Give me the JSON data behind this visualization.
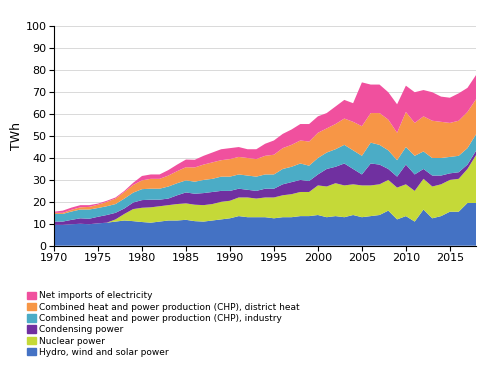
{
  "years": [
    1970,
    1971,
    1972,
    1973,
    1974,
    1975,
    1976,
    1977,
    1978,
    1979,
    1980,
    1981,
    1982,
    1983,
    1984,
    1985,
    1986,
    1987,
    1988,
    1989,
    1990,
    1991,
    1992,
    1993,
    1994,
    1995,
    1996,
    1997,
    1998,
    1999,
    2000,
    2001,
    2002,
    2003,
    2004,
    2005,
    2006,
    2007,
    2008,
    2009,
    2010,
    2011,
    2012,
    2013,
    2014,
    2015,
    2016,
    2017,
    2018
  ],
  "hydro_wind_solar": [
    9.5,
    9.5,
    9.8,
    10.0,
    9.8,
    10.2,
    10.5,
    11.0,
    11.5,
    11.2,
    10.8,
    10.5,
    11.0,
    11.5,
    11.5,
    11.8,
    11.2,
    11.0,
    11.5,
    12.0,
    12.5,
    13.5,
    13.0,
    13.0,
    13.0,
    12.5,
    13.0,
    13.0,
    13.5,
    13.5,
    14.0,
    13.0,
    13.5,
    13.0,
    14.0,
    13.0,
    13.5,
    14.0,
    16.0,
    12.0,
    13.5,
    11.0,
    16.5,
    12.5,
    13.5,
    15.5,
    15.5,
    19.5,
    19.5
  ],
  "nuclear": [
    0.0,
    0.0,
    0.0,
    0.0,
    0.0,
    0.0,
    0.0,
    1.0,
    3.0,
    5.5,
    6.5,
    7.0,
    7.0,
    7.0,
    7.5,
    7.5,
    7.5,
    7.5,
    7.5,
    8.0,
    8.0,
    8.5,
    9.0,
    8.5,
    9.0,
    9.5,
    10.0,
    10.5,
    11.0,
    11.0,
    13.5,
    14.0,
    15.0,
    14.5,
    14.0,
    14.5,
    14.0,
    14.0,
    14.0,
    14.5,
    14.5,
    14.0,
    14.0,
    14.5,
    14.5,
    14.5,
    15.0,
    15.5,
    22.0
  ],
  "condensing": [
    1.5,
    1.5,
    2.0,
    2.5,
    2.5,
    3.0,
    3.5,
    3.0,
    2.5,
    3.0,
    3.5,
    3.5,
    3.0,
    3.0,
    4.0,
    5.0,
    5.0,
    5.5,
    5.5,
    5.0,
    4.5,
    4.0,
    3.5,
    3.5,
    4.0,
    4.0,
    5.0,
    5.5,
    5.5,
    5.0,
    5.0,
    8.0,
    7.5,
    10.0,
    7.0,
    5.0,
    10.0,
    9.0,
    5.0,
    5.0,
    9.0,
    7.5,
    4.5,
    5.0,
    4.0,
    3.0,
    3.0,
    2.0,
    2.0
  ],
  "chp_industry": [
    3.5,
    3.5,
    3.8,
    4.0,
    4.2,
    4.0,
    4.0,
    4.0,
    4.5,
    4.5,
    5.0,
    5.0,
    5.0,
    5.5,
    5.5,
    5.5,
    5.5,
    6.0,
    6.0,
    6.5,
    6.5,
    6.5,
    6.5,
    6.5,
    6.5,
    6.5,
    7.0,
    7.0,
    7.5,
    7.0,
    7.5,
    7.5,
    8.0,
    8.5,
    8.5,
    8.5,
    9.5,
    9.0,
    8.5,
    7.5,
    8.0,
    8.5,
    8.0,
    8.0,
    8.0,
    7.5,
    7.5,
    7.5,
    7.5
  ],
  "chp_district": [
    0.5,
    0.5,
    0.8,
    1.0,
    1.2,
    1.5,
    2.0,
    2.5,
    3.0,
    3.5,
    4.0,
    4.5,
    4.5,
    5.0,
    5.5,
    6.0,
    6.5,
    7.0,
    7.5,
    7.5,
    8.0,
    8.0,
    8.0,
    8.0,
    8.5,
    9.0,
    9.5,
    10.0,
    10.5,
    11.0,
    11.5,
    11.0,
    11.5,
    12.0,
    13.0,
    13.5,
    13.5,
    14.5,
    14.0,
    12.5,
    16.0,
    15.0,
    16.0,
    17.0,
    16.5,
    15.5,
    16.0,
    16.5,
    16.0
  ],
  "net_imports": [
    0.5,
    1.0,
    1.0,
    1.0,
    0.8,
    0.5,
    0.5,
    0.5,
    0.5,
    1.0,
    2.0,
    2.0,
    2.0,
    2.5,
    3.0,
    3.5,
    3.5,
    4.0,
    4.5,
    5.0,
    5.0,
    4.5,
    4.0,
    4.5,
    5.5,
    6.5,
    6.5,
    7.0,
    7.5,
    8.0,
    7.5,
    7.0,
    8.0,
    8.5,
    8.5,
    20.0,
    13.0,
    13.0,
    12.5,
    13.0,
    12.0,
    14.0,
    12.0,
    13.0,
    11.5,
    11.5,
    12.5,
    11.0,
    11.0
  ],
  "color_hydro": "#4472c4",
  "color_nuclear": "#c5d938",
  "color_condensing": "#7030a0",
  "color_chp_ind": "#4bacc6",
  "color_chp_dist": "#f79646",
  "color_net_imp": "#f0509e",
  "ylabel": "TWh",
  "ylim": [
    0,
    100
  ],
  "xlim": [
    1970,
    2018
  ],
  "yticks": [
    0,
    10,
    20,
    30,
    40,
    50,
    60,
    70,
    80,
    90,
    100
  ],
  "xticks": [
    1970,
    1975,
    1980,
    1985,
    1990,
    1995,
    2000,
    2005,
    2010,
    2015
  ],
  "legend_labels": [
    "Net imports of electricity",
    "Combined heat and power production (CHP), district heat",
    "Combined heat and power production (CHP), industry",
    "Condensing power",
    "Nuclear power",
    "Hydro, wind and solar power"
  ],
  "legend_colors": [
    "#f0509e",
    "#f79646",
    "#4bacc6",
    "#7030a0",
    "#c5d938",
    "#4472c4"
  ]
}
